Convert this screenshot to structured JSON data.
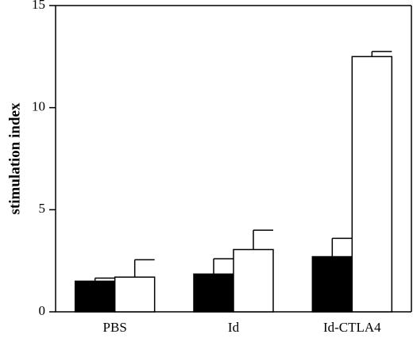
{
  "chart_data": {
    "type": "bar",
    "title": "",
    "xlabel": "",
    "ylabel": "stimulation index",
    "ylim": [
      0,
      15
    ],
    "yticks": [
      0,
      5,
      10,
      15
    ],
    "grid": false,
    "legend": "none",
    "categories": [
      "PBS",
      "Id",
      "Id-CTLA4"
    ],
    "series": [
      {
        "fill": "#000000",
        "values": [
          1.5,
          1.85,
          2.7
        ],
        "errors": [
          0.15,
          0.75,
          0.9
        ]
      },
      {
        "fill": "#ffffff",
        "values": [
          1.7,
          3.05,
          12.5
        ],
        "errors": [
          0.85,
          0.95,
          0.25
        ]
      }
    ]
  }
}
